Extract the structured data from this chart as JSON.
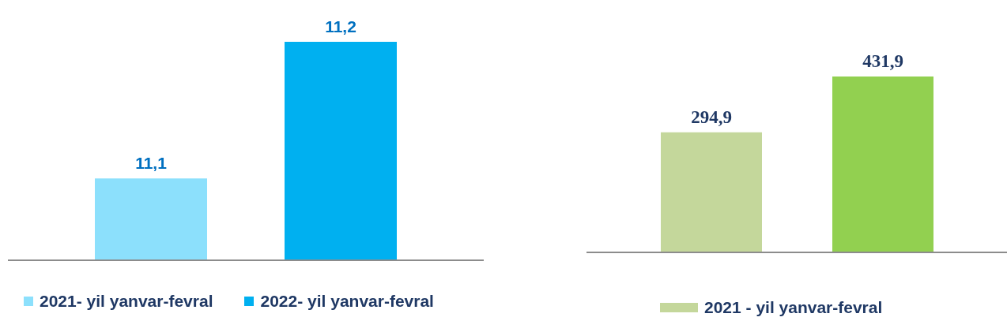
{
  "chart_data": [
    {
      "type": "bar",
      "categories": [
        null
      ],
      "ylim": [
        11.04,
        11.2
      ],
      "legend": "bottom",
      "series": [
        {
          "name": "2021- yil yanvar-fevral",
          "color": "#8ce0fc",
          "values": [
            11.1
          ],
          "value_labels": [
            "11,1"
          ]
        },
        {
          "name": "2022- yil yanvar-fevral",
          "color": "#00b0f0",
          "values": [
            11.2
          ],
          "value_labels": [
            "11,2"
          ]
        }
      ]
    },
    {
      "type": "bar",
      "categories": [
        null
      ],
      "legend": "bottom",
      "series": [
        {
          "name": "2021 - yil yanvar-fevral",
          "color": "#c4d79b",
          "values": [
            294.9
          ],
          "value_labels": [
            "294,9"
          ]
        },
        {
          "color": "#92d050",
          "values": [
            431.9
          ],
          "value_labels": [
            "431,9"
          ]
        }
      ]
    }
  ]
}
